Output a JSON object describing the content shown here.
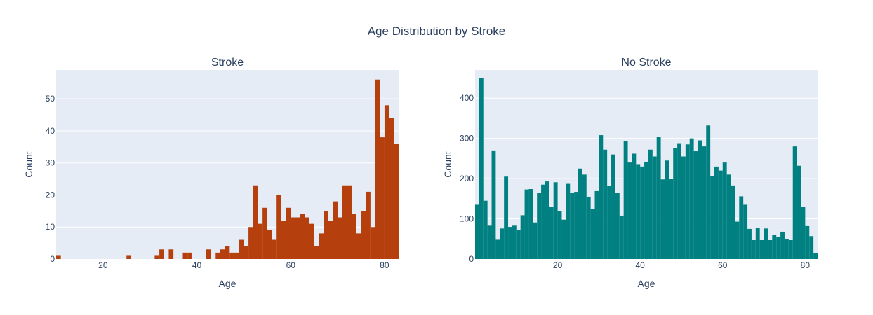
{
  "title": "Age Distribution by Stroke",
  "chart_data": [
    {
      "type": "bar",
      "subtitle": "Stroke",
      "xlabel": "Age",
      "ylabel": "Count",
      "color": "#b5400e",
      "xlim": [
        10,
        83
      ],
      "ylim": [
        0,
        59
      ],
      "xticks": [
        20,
        40,
        60,
        80
      ],
      "yticks": [
        0,
        10,
        20,
        30,
        40,
        50
      ],
      "bin_width": 1,
      "x": [
        10,
        25,
        31,
        32,
        34,
        37,
        38,
        42,
        44,
        45,
        46,
        47,
        48,
        49,
        50,
        51,
        52,
        53,
        54,
        55,
        56,
        57,
        58,
        59,
        60,
        61,
        62,
        63,
        64,
        65,
        66,
        67,
        68,
        69,
        70,
        71,
        72,
        73,
        74,
        75,
        76,
        77,
        78,
        79,
        80,
        81,
        82
      ],
      "values": [
        1,
        1,
        1,
        3,
        3,
        2,
        2,
        3,
        2,
        3,
        4,
        2,
        2,
        6,
        4,
        10,
        23,
        11,
        16,
        9,
        6,
        20,
        12,
        16,
        13,
        13,
        14,
        13,
        11,
        4,
        8,
        15,
        12,
        18,
        13,
        23,
        23,
        14,
        8,
        15,
        21,
        10,
        56,
        38,
        48,
        44,
        36
      ]
    },
    {
      "type": "bar",
      "subtitle": "No Stroke",
      "xlabel": "Age",
      "ylabel": "Count",
      "color": "#008080",
      "xlim": [
        0,
        83
      ],
      "ylim": [
        0,
        470
      ],
      "xticks": [
        20,
        40,
        60,
        80
      ],
      "yticks": [
        0,
        100,
        200,
        300,
        400
      ],
      "bin_width": 1,
      "x": [
        0,
        1,
        2,
        3,
        4,
        5,
        6,
        7,
        8,
        9,
        10,
        11,
        12,
        13,
        14,
        15,
        16,
        17,
        18,
        19,
        20,
        21,
        22,
        23,
        24,
        25,
        26,
        27,
        28,
        29,
        30,
        31,
        32,
        33,
        34,
        35,
        36,
        37,
        38,
        39,
        40,
        41,
        42,
        43,
        44,
        45,
        46,
        47,
        48,
        49,
        50,
        51,
        52,
        53,
        54,
        55,
        56,
        57,
        58,
        59,
        60,
        61,
        62,
        63,
        64,
        65,
        66,
        67,
        68,
        69,
        70,
        71,
        72,
        73,
        74,
        75,
        76,
        77,
        78,
        79,
        80,
        81,
        82
      ],
      "values": [
        135,
        450,
        145,
        83,
        270,
        48,
        76,
        205,
        80,
        83,
        72,
        109,
        173,
        174,
        91,
        164,
        185,
        193,
        130,
        191,
        120,
        98,
        187,
        165,
        167,
        225,
        210,
        155,
        124,
        169,
        308,
        272,
        182,
        260,
        164,
        108,
        293,
        240,
        262,
        236,
        230,
        242,
        272,
        255,
        304,
        198,
        245,
        199,
        275,
        288,
        255,
        285,
        300,
        268,
        295,
        280,
        332,
        207,
        230,
        220,
        240,
        210,
        183,
        93,
        156,
        135,
        75,
        47,
        77,
        47,
        76,
        47,
        60,
        55,
        68,
        49,
        47,
        280,
        232,
        130,
        82,
        57,
        15
      ]
    }
  ]
}
